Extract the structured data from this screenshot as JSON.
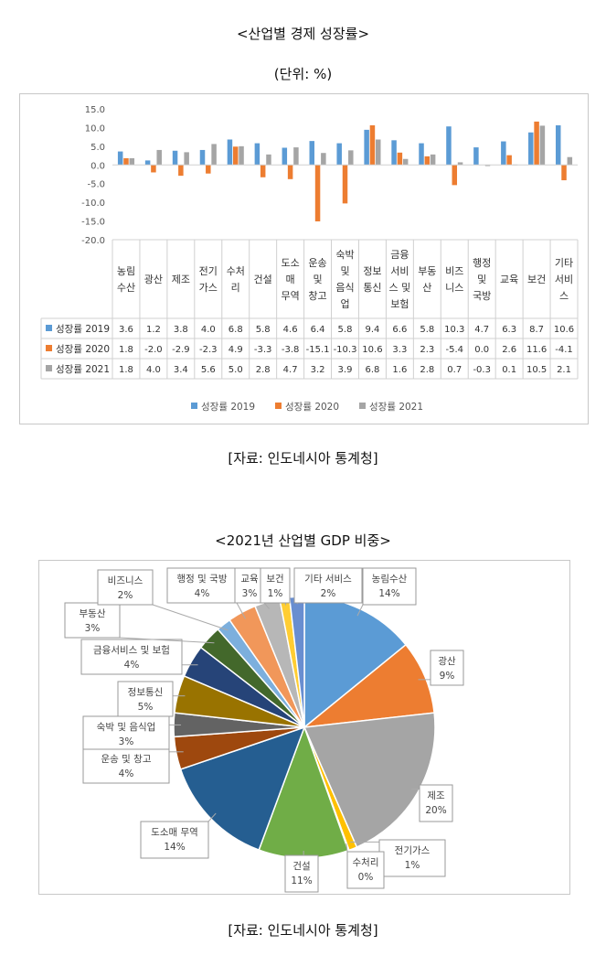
{
  "titles": {
    "chart1_title": "<산업별 경제 성장률>",
    "chart1_unit": "(단위: %)",
    "source1": "[자료: 인도네시아 통계청]",
    "chart2_title": "<2021년 산업별 GDP 비중>",
    "source2": "[자료: 인도네시아 통계청]"
  },
  "chart_data": [
    {
      "type": "bar",
      "title": "<산업별 경제 성장률>",
      "subtitle": "(단위: %)",
      "ylim": [
        -20,
        15
      ],
      "yticks": [
        "15.0",
        "10.0",
        "5.0",
        "0.0",
        "-5.0",
        "-10.0",
        "-15.0",
        "-20.0"
      ],
      "grid": false,
      "legend": "bottom",
      "categories": [
        [
          "농림",
          "수산"
        ],
        [
          "광산"
        ],
        [
          "제조"
        ],
        [
          "전기",
          "가스"
        ],
        [
          "수처",
          "리"
        ],
        [
          "건설"
        ],
        [
          "도소",
          "매",
          "무역"
        ],
        [
          "운송",
          "및",
          "창고"
        ],
        [
          "숙박",
          "및",
          "음식",
          "업"
        ],
        [
          "정보",
          "통신"
        ],
        [
          "금융",
          "서비",
          "스 및",
          "보험"
        ],
        [
          "부동",
          "산"
        ],
        [
          "비즈",
          "니스"
        ],
        [
          "행정",
          "및",
          "국방"
        ],
        [
          "교육"
        ],
        [
          "보건"
        ],
        [
          "기타",
          "서비",
          "스"
        ]
      ],
      "series": [
        {
          "name": "성장률 2019",
          "color": "#5B9BD5",
          "labels": [
            "3.6",
            "1.2",
            "3.8",
            "4.0",
            "6.8",
            "5.8",
            "4.6",
            "6.4",
            "5.8",
            "9.4",
            "6.6",
            "5.8",
            "10.3",
            "4.7",
            "6.3",
            "8.7",
            "10.6"
          ],
          "values": [
            3.6,
            1.2,
            3.8,
            4.0,
            6.8,
            5.8,
            4.6,
            6.4,
            5.8,
            9.4,
            6.6,
            5.8,
            10.3,
            4.7,
            6.3,
            8.7,
            10.6
          ]
        },
        {
          "name": "성장률 2020",
          "color": "#ED7D31",
          "labels": [
            "1.8",
            "-2.0",
            "-2.9",
            "-2.3",
            "4.9",
            "-3.3",
            "-3.8",
            "-15.1",
            "-10.3",
            "10.6",
            "3.3",
            "2.3",
            "-5.4",
            "0.0",
            "2.6",
            "11.6",
            "-4.1"
          ],
          "values": [
            1.8,
            -2.0,
            -2.9,
            -2.3,
            4.9,
            -3.3,
            -3.8,
            -15.1,
            -10.3,
            10.6,
            3.3,
            2.3,
            -5.4,
            0.0,
            2.6,
            11.6,
            -4.1
          ]
        },
        {
          "name": "성장률 2021",
          "color": "#A5A5A5",
          "labels": [
            "1.8",
            "4.0",
            "3.4",
            "5.6",
            "5.0",
            "2.8",
            "4.7",
            "3.2",
            "3.9",
            "6.8",
            "1.6",
            "2.8",
            "0.7",
            "-0.3",
            "0.1",
            "10.5",
            "2.1"
          ],
          "values": [
            1.8,
            4.0,
            3.4,
            5.6,
            5.0,
            2.8,
            4.7,
            3.2,
            3.9,
            6.8,
            1.6,
            2.8,
            0.7,
            -0.3,
            0.1,
            10.5,
            2.1
          ]
        }
      ]
    },
    {
      "type": "pie",
      "title": "<2021년 산업별 GDP 비중>",
      "slices": [
        {
          "label": "농림수산",
          "pct": "14%",
          "value": 14,
          "color": "#5B9BD5"
        },
        {
          "label": "광산",
          "pct": "9%",
          "value": 9,
          "color": "#ED7D31"
        },
        {
          "label": "제조",
          "pct": "20%",
          "value": 20,
          "color": "#A5A5A5"
        },
        {
          "label": "전기가스",
          "pct": "1%",
          "value": 1,
          "color": "#FFC000"
        },
        {
          "label": "수처리",
          "pct": "0%",
          "value": 0.1,
          "color": "#4472C4"
        },
        {
          "label": "건설",
          "pct": "11%",
          "value": 11,
          "color": "#70AD47"
        },
        {
          "label": "도소매 무역",
          "pct": "14%",
          "value": 14,
          "color": "#255E91"
        },
        {
          "label": "운송 및 창고",
          "pct": "4%",
          "value": 4,
          "color": "#9E480E"
        },
        {
          "label": "숙박 및 음식업",
          "pct": "3%",
          "value": 2.9,
          "color": "#636363"
        },
        {
          "label": "정보통신",
          "pct": "5%",
          "value": 4.6,
          "color": "#997300"
        },
        {
          "label": "금융서비스 및 보험",
          "pct": "4%",
          "value": 4,
          "color": "#264478"
        },
        {
          "label": "부동산",
          "pct": "3%",
          "value": 3,
          "color": "#43682B"
        },
        {
          "label": "비즈니스",
          "pct": "2%",
          "value": 1.8,
          "color": "#7CAFDD"
        },
        {
          "label": "행정 및 국방",
          "pct": "4%",
          "value": 3.5,
          "color": "#F1975A"
        },
        {
          "label": "교육",
          "pct": "3%",
          "value": 3.1,
          "color": "#B7B7B7"
        },
        {
          "label": "보건",
          "pct": "1%",
          "value": 1.2,
          "color": "#FFCD33"
        },
        {
          "label": "기타 서비스",
          "pct": "2%",
          "value": 1.8,
          "color": "#698ED0"
        }
      ]
    }
  ]
}
